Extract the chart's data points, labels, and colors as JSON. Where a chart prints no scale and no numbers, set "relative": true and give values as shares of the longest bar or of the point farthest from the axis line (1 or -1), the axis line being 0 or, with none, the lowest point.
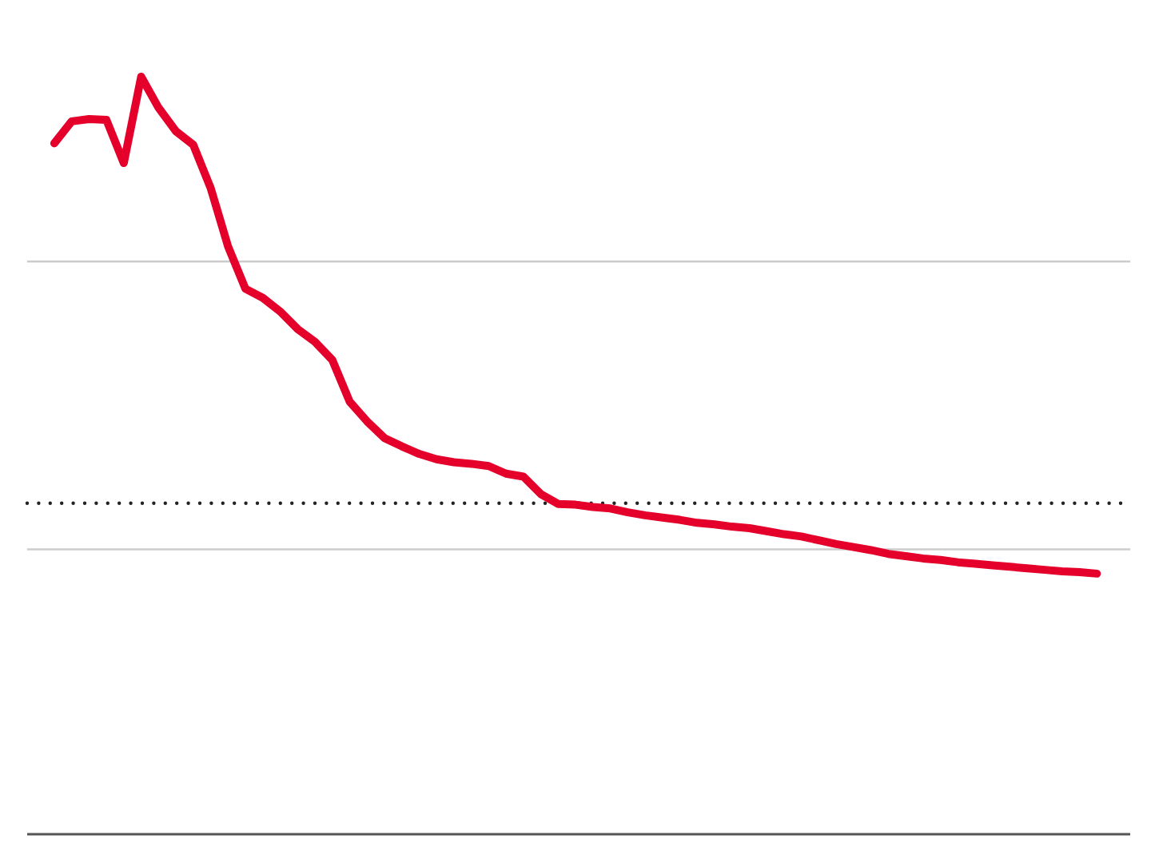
{
  "chart_data": {
    "type": "line",
    "relative": true,
    "categories": [
      null,
      null,
      null,
      null,
      null,
      null,
      null,
      null,
      null,
      null,
      null,
      null,
      null,
      null,
      null,
      null,
      null,
      null,
      null,
      null,
      null,
      null,
      null,
      null,
      null,
      null,
      null,
      null,
      null,
      null,
      null,
      null,
      null,
      null,
      null,
      null,
      null,
      null,
      null,
      null,
      null,
      null,
      null,
      null,
      null,
      null,
      null,
      null,
      null,
      null,
      null,
      null,
      null,
      null,
      null,
      null,
      null,
      null,
      null,
      null,
      null
    ],
    "series": [
      {
        "color": "#e4002b",
        "values": [
          0.912,
          0.941,
          0.944,
          0.943,
          0.886,
          1.0,
          0.959,
          0.928,
          0.91,
          0.853,
          0.776,
          0.72,
          0.708,
          0.69,
          0.667,
          0.65,
          0.626,
          0.571,
          0.545,
          0.523,
          0.512,
          0.502,
          0.495,
          0.491,
          0.489,
          0.486,
          0.476,
          0.472,
          0.449,
          0.436,
          0.435,
          0.432,
          0.43,
          0.425,
          0.421,
          0.418,
          0.415,
          0.411,
          0.409,
          0.406,
          0.404,
          0.4,
          0.396,
          0.393,
          0.388,
          0.383,
          0.379,
          0.375,
          0.37,
          0.367,
          0.364,
          0.362,
          0.359,
          0.357,
          0.355,
          0.353,
          0.351,
          0.349,
          0.347,
          0.346,
          0.344
        ]
      }
    ],
    "ref_lines": [
      {
        "axis": "y",
        "value": 0.437,
        "label": null,
        "color": "#222222",
        "line_style": "dotted"
      },
      {
        "axis": "y",
        "value": 0.756,
        "label": null,
        "color": "#cccccc",
        "line_style": "solid"
      },
      {
        "axis": "y",
        "value": 0.376,
        "label": null,
        "color": "#cccccc",
        "line_style": "solid"
      }
    ],
    "tick_labels": false,
    "marker": "none",
    "line_style": "solid"
  }
}
